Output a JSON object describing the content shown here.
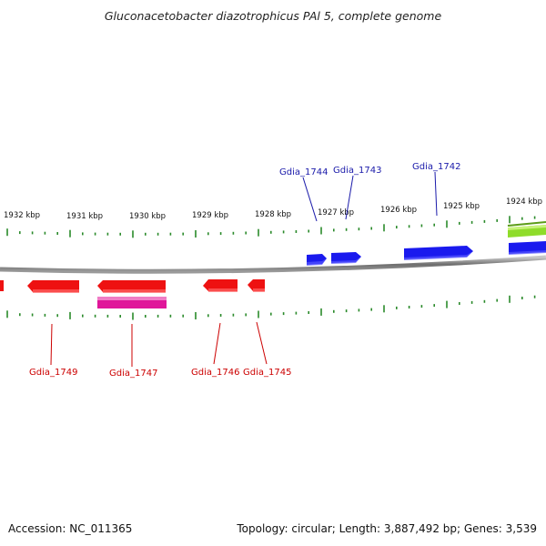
{
  "title": "Gluconacetobacter diazotrophicus PAl 5, complete genome",
  "accession_text": "Accession: NC_011365",
  "summary_text": "Topology: circular; Length: 3,887,492 bp; Genes: 3,539",
  "colors": {
    "forward_gene": "#1a1aee",
    "reverse_gene": "#ee1111",
    "rna_feature": "#e0169a",
    "other_feature": "#8fdc2a",
    "tick": "#2a8a2a",
    "backbone": "#7a7a7a",
    "forward_label": "#1a1aaa",
    "reverse_label": "#cc0000"
  },
  "scale_labels": [
    {
      "text": "1932 kbp",
      "kbp": 1932
    },
    {
      "text": "1931 kbp",
      "kbp": 1931
    },
    {
      "text": "1930 kbp",
      "kbp": 1930
    },
    {
      "text": "1929 kbp",
      "kbp": 1929
    },
    {
      "text": "1928 kbp",
      "kbp": 1928
    },
    {
      "text": "1927 kbp",
      "kbp": 1927
    },
    {
      "text": "1926 kbp",
      "kbp": 1926
    },
    {
      "text": "1925 kbp",
      "kbp": 1925
    },
    {
      "text": "1924 kbp",
      "kbp": 1924
    }
  ],
  "forward_labels": [
    "Gdia_1744",
    "Gdia_1743",
    "Gdia_1742"
  ],
  "reverse_labels": [
    "Gdia_1749",
    "Gdia_1747",
    "Gdia_1746",
    "Gdia_1745"
  ]
}
